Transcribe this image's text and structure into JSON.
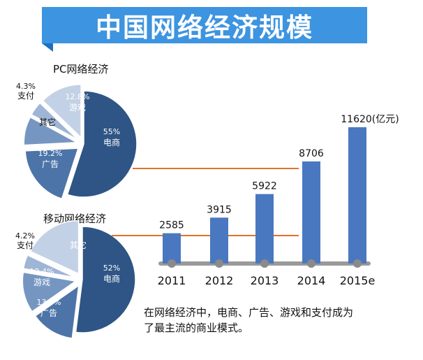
{
  "banner": {
    "title": "中国网络经济规模"
  },
  "caption": {
    "lines": [
      "在网络经济中，电商、广告、游戏和支付成为",
      "了最主流的商业模式。"
    ]
  },
  "chart_data": [
    {
      "type": "pie",
      "title": "PC网络经济",
      "slices": [
        {
          "label": "电商",
          "value": 55,
          "value_label": "55%",
          "color": "#2e5585"
        },
        {
          "label": "广告",
          "value": 19.2,
          "value_label": "19.2%",
          "color": "#4d74a9"
        },
        {
          "label": "其它",
          "value": 8.7,
          "value_label": "",
          "color": "#7696c2"
        },
        {
          "label": "支付",
          "value": 4.3,
          "value_label": "4.3%",
          "color": "#9eb5d6"
        },
        {
          "label": "游戏",
          "value": 12.8,
          "value_label": "12.8%",
          "color": "#c3d1e6"
        }
      ]
    },
    {
      "type": "pie",
      "title": "移动网络经济",
      "slices": [
        {
          "label": "电商",
          "value": 52,
          "value_label": "52%",
          "color": "#2e5585"
        },
        {
          "label": "广告",
          "value": 13.3,
          "value_label": "13.3%",
          "color": "#4d74a9"
        },
        {
          "label": "游戏",
          "value": 12.4,
          "value_label": "12.4%",
          "color": "#7696c2"
        },
        {
          "label": "支付",
          "value": 4.2,
          "value_label": "4.2%",
          "color": "#9eb5d6"
        },
        {
          "label": "其它",
          "value": 18.1,
          "value_label": "",
          "color": "#c3d1e6"
        }
      ]
    },
    {
      "type": "bar",
      "title": "",
      "categories": [
        "2011",
        "2012",
        "2013",
        "2014",
        "2015e"
      ],
      "values": [
        2585,
        3915,
        5922,
        8706,
        11620
      ],
      "value_labels": [
        "2585",
        "3915",
        "5922",
        "8706",
        "11620"
      ],
      "unit": "(亿元)",
      "ylim": [
        0,
        11620
      ],
      "bar_color": "#4a78c0"
    }
  ]
}
